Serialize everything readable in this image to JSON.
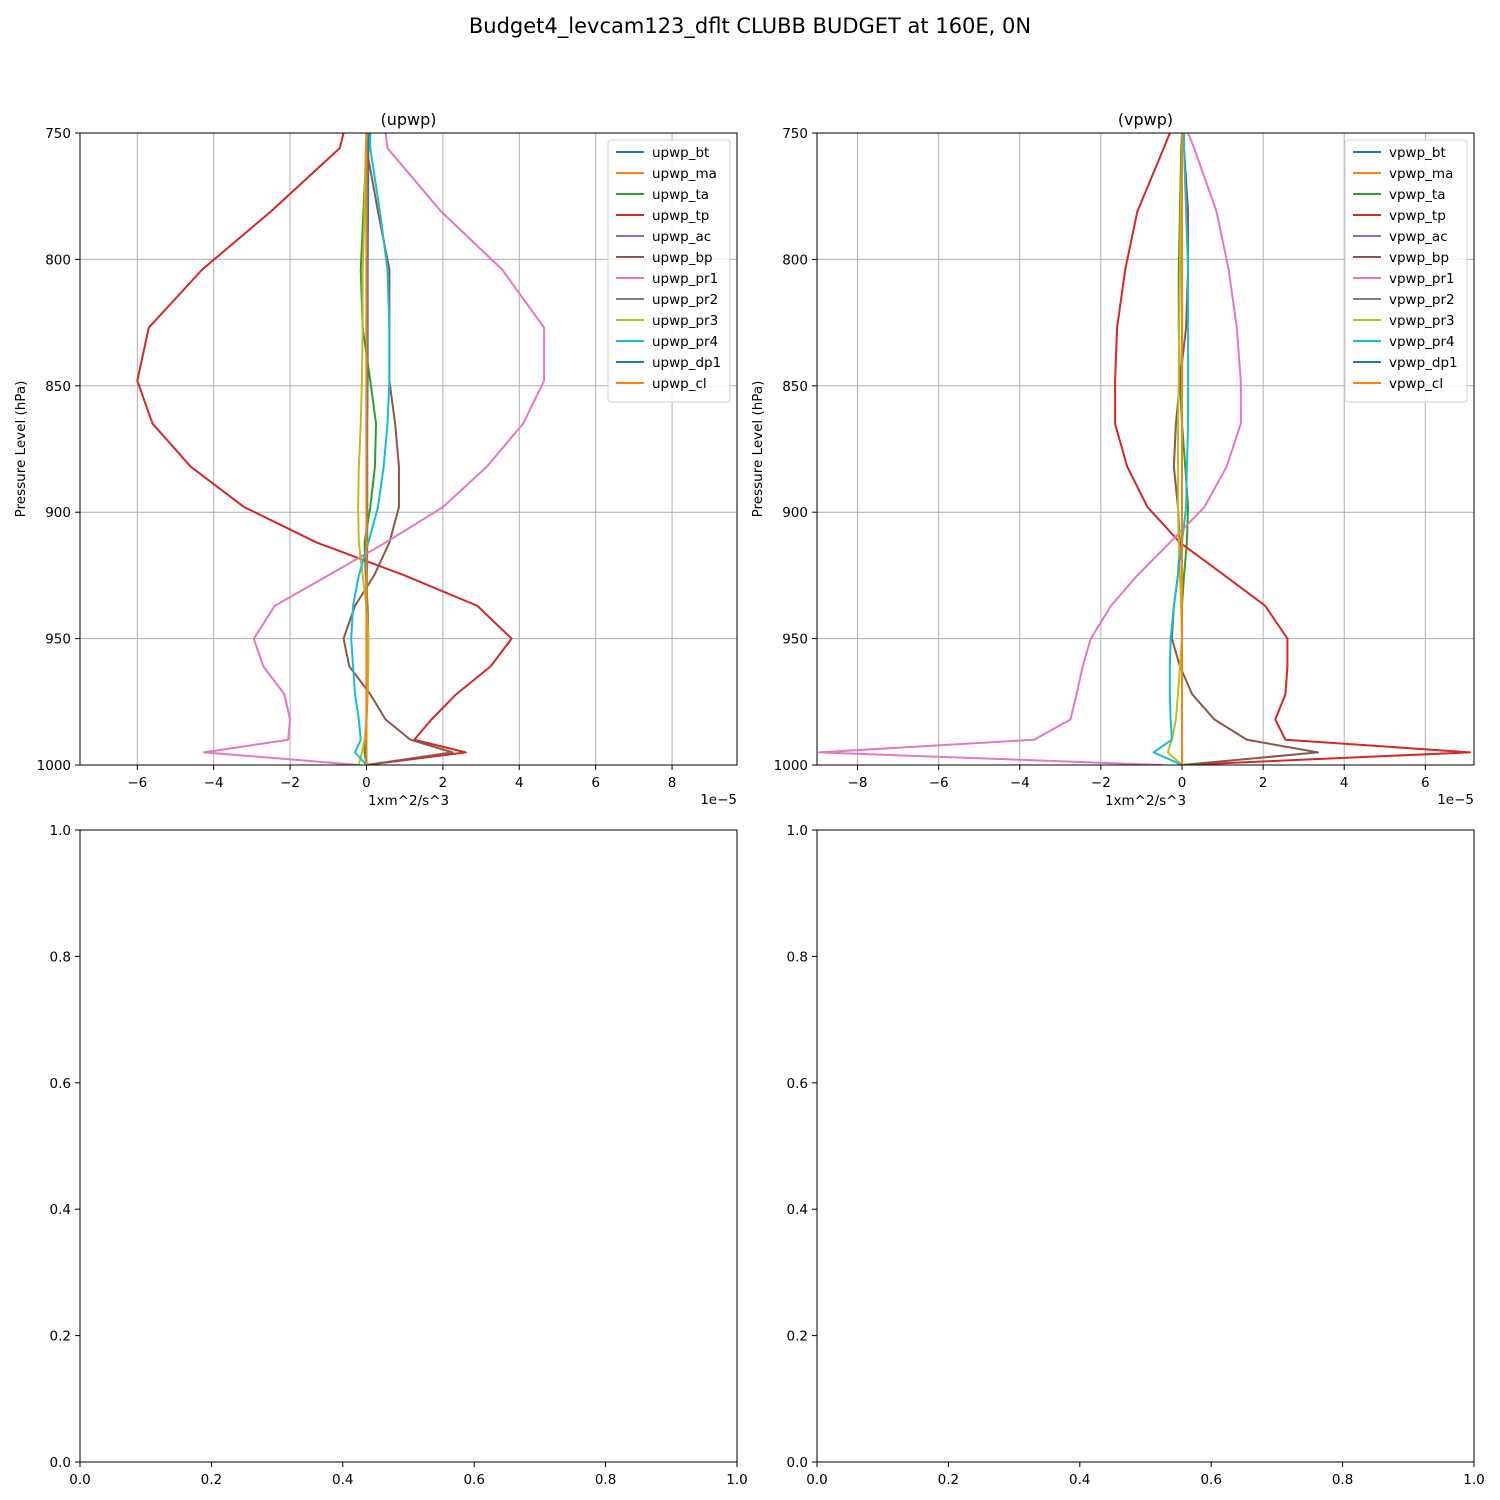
{
  "figure_title": "Budget4_levcam123_dflt CLUBB BUDGET at 160E, 0N",
  "colors": {
    "bt": "#1f77b4",
    "ma": "#ff7f0e",
    "ta": "#2ca02c",
    "tp": "#d62728",
    "ac": "#9467bd",
    "bp": "#8c564b",
    "pr1": "#e377c2",
    "pr2": "#7f7f7f",
    "pr3": "#bcbd22",
    "pr4": "#17becf",
    "dp1": "#1f77b4",
    "cl": "#ff7f0e",
    "grid": "#b0b0b0"
  },
  "chart_data": [
    {
      "type": "line",
      "title": "(upwp)",
      "xlabel": "1xm^2/s^3",
      "ylabel": "Pressure Level (hPa)",
      "x_offset_text": "1e−5",
      "xlim": [
        -7.5,
        9.7
      ],
      "ylim": [
        1000,
        750
      ],
      "xticks": [
        -6,
        -4,
        -2,
        0,
        2,
        4,
        6,
        8
      ],
      "xtick_labels": [
        "−6",
        "−4",
        "−2",
        "0",
        "2",
        "4",
        "6",
        "8"
      ],
      "yticks": [
        750,
        800,
        850,
        900,
        950,
        1000
      ],
      "ytick_labels": [
        "750",
        "800",
        "850",
        "900",
        "950",
        "1000"
      ],
      "grid": true,
      "legend_position": "top-right",
      "y": [
        750,
        756,
        781,
        804,
        827,
        848,
        865,
        882,
        898,
        912,
        925,
        937,
        950,
        961,
        972,
        982,
        990,
        995,
        1000
      ],
      "series": [
        {
          "name": "upwp_bt",
          "color_key": "bt",
          "values": [
            0.05,
            0.05,
            0.04,
            0.03,
            0.03,
            0.03,
            0.02,
            0.02,
            0.02,
            0.02,
            0.01,
            0.01,
            0.01,
            0.01,
            0.01,
            0.0,
            0.0,
            0.0,
            0.0
          ]
        },
        {
          "name": "upwp_ma",
          "color_key": "ma",
          "values": [
            0.0,
            0.0,
            0.0,
            0.0,
            0.0,
            0.0,
            0.0,
            0.0,
            0.0,
            0.0,
            0.0,
            0.0,
            0.0,
            0.0,
            0.0,
            0.0,
            0.0,
            0.0,
            0.0
          ]
        },
        {
          "name": "upwp_ta",
          "color_key": "ta",
          "values": [
            0.02,
            0.0,
            -0.08,
            -0.15,
            -0.1,
            0.1,
            0.25,
            0.22,
            0.1,
            -0.05,
            -0.02,
            0.03,
            0.05,
            0.04,
            0.03,
            0.0,
            -0.03,
            -0.05,
            0.0
          ]
        },
        {
          "name": "upwp_tp",
          "color_key": "tp",
          "values": [
            -0.6,
            -0.7,
            -2.5,
            -4.3,
            -5.7,
            -6.0,
            -5.6,
            -4.6,
            -3.2,
            -1.3,
            1.0,
            2.9,
            3.8,
            3.25,
            2.35,
            1.7,
            1.25,
            2.6,
            0.0
          ]
        },
        {
          "name": "upwp_ac",
          "color_key": "ac",
          "values": [
            0.0,
            0.0,
            0.0,
            0.0,
            0.0,
            0.0,
            0.0,
            0.0,
            0.0,
            0.0,
            0.0,
            0.0,
            0.0,
            0.0,
            0.0,
            0.0,
            0.0,
            0.0,
            0.0
          ]
        },
        {
          "name": "upwp_bp",
          "color_key": "bp",
          "values": [
            0.0,
            0.0,
            0.3,
            0.6,
            0.6,
            0.6,
            0.75,
            0.85,
            0.85,
            0.6,
            0.2,
            -0.3,
            -0.6,
            -0.45,
            0.1,
            0.5,
            1.15,
            2.25,
            0.0
          ]
        },
        {
          "name": "upwp_pr1",
          "color_key": "pr1",
          "values": [
            0.5,
            0.55,
            1.95,
            3.55,
            4.65,
            4.65,
            4.1,
            3.15,
            2.0,
            0.5,
            -1.0,
            -2.4,
            -2.95,
            -2.7,
            -2.15,
            -2.0,
            -2.05,
            -4.25,
            -0.2
          ]
        },
        {
          "name": "upwp_pr2",
          "color_key": "pr2",
          "values": [
            0.0,
            0.0,
            0.0,
            0.0,
            0.0,
            0.0,
            0.0,
            0.0,
            0.0,
            0.0,
            0.0,
            0.0,
            0.0,
            0.0,
            0.0,
            0.0,
            0.0,
            0.0,
            0.0
          ]
        },
        {
          "name": "upwp_pr3",
          "color_key": "pr3",
          "values": [
            0.0,
            -0.02,
            -0.05,
            -0.1,
            -0.1,
            -0.12,
            -0.15,
            -0.2,
            -0.22,
            -0.2,
            -0.1,
            0.0,
            0.05,
            0.05,
            0.03,
            0.0,
            -0.05,
            -0.12,
            -0.2
          ]
        },
        {
          "name": "upwp_pr4",
          "color_key": "pr4",
          "values": [
            0.1,
            0.1,
            0.35,
            0.55,
            0.6,
            0.6,
            0.55,
            0.45,
            0.3,
            0.05,
            -0.2,
            -0.35,
            -0.4,
            -0.35,
            -0.3,
            -0.2,
            -0.15,
            -0.3,
            0.0
          ]
        },
        {
          "name": "upwp_dp1",
          "color_key": "dp1",
          "values": [
            0.0,
            0.0,
            0.0,
            0.0,
            0.0,
            0.0,
            0.0,
            0.0,
            0.0,
            0.0,
            0.0,
            0.0,
            0.0,
            0.0,
            0.0,
            0.0,
            0.0,
            0.0,
            0.0
          ]
        },
        {
          "name": "upwp_cl",
          "color_key": "cl",
          "values": [
            0.0,
            0.0,
            0.0,
            0.0,
            0.0,
            0.0,
            0.0,
            0.0,
            0.0,
            0.0,
            0.0,
            0.0,
            0.0,
            0.0,
            0.0,
            0.0,
            0.0,
            0.0,
            0.0
          ]
        }
      ]
    },
    {
      "type": "line",
      "title": "(vpwp)",
      "xlabel": "1xm^2/s^3",
      "ylabel": "Pressure Level (hPa)",
      "x_offset_text": "1e−5",
      "xlim": [
        -9.0,
        7.2
      ],
      "ylim": [
        1000,
        750
      ],
      "xticks": [
        -8,
        -6,
        -4,
        -2,
        0,
        2,
        4,
        6
      ],
      "xtick_labels": [
        "−8",
        "−6",
        "−4",
        "−2",
        "0",
        "2",
        "4",
        "6"
      ],
      "yticks": [
        750,
        800,
        850,
        900,
        950,
        1000
      ],
      "ytick_labels": [
        "750",
        "800",
        "850",
        "900",
        "950",
        "1000"
      ],
      "grid": true,
      "legend_position": "top-right",
      "y": [
        750,
        756,
        781,
        804,
        827,
        848,
        865,
        882,
        898,
        912,
        925,
        937,
        950,
        961,
        972,
        982,
        990,
        995,
        1000
      ],
      "series": [
        {
          "name": "vpwp_bt",
          "color_key": "bt",
          "values": [
            0.0,
            0.0,
            0.0,
            0.0,
            0.0,
            0.0,
            0.0,
            0.0,
            0.0,
            0.0,
            0.0,
            0.0,
            0.0,
            0.0,
            0.0,
            0.0,
            0.0,
            0.0,
            0.0
          ]
        },
        {
          "name": "vpwp_ma",
          "color_key": "ma",
          "values": [
            0.0,
            0.0,
            0.0,
            0.0,
            0.0,
            0.0,
            0.0,
            0.0,
            0.0,
            0.0,
            0.0,
            0.0,
            0.0,
            0.0,
            0.0,
            0.0,
            0.0,
            0.0,
            0.0
          ]
        },
        {
          "name": "vpwp_ta",
          "color_key": "ta",
          "values": [
            0.0,
            -0.02,
            -0.05,
            -0.08,
            -0.08,
            -0.05,
            0.0,
            0.08,
            0.15,
            0.12,
            0.05,
            0.0,
            0.0,
            0.0,
            0.0,
            0.0,
            0.0,
            0.0,
            0.0
          ]
        },
        {
          "name": "vpwp_tp",
          "color_key": "tp",
          "values": [
            -0.3,
            -0.45,
            -1.1,
            -1.4,
            -1.6,
            -1.65,
            -1.65,
            -1.35,
            -0.85,
            -0.05,
            1.05,
            2.05,
            2.6,
            2.6,
            2.55,
            2.3,
            2.55,
            7.1,
            0.0
          ]
        },
        {
          "name": "vpwp_ac",
          "color_key": "ac",
          "values": [
            0.0,
            0.0,
            0.0,
            0.0,
            0.0,
            0.0,
            0.0,
            0.0,
            0.0,
            0.0,
            0.0,
            0.0,
            0.0,
            0.0,
            0.0,
            0.0,
            0.0,
            0.0,
            0.0
          ]
        },
        {
          "name": "vpwp_bp",
          "color_key": "bp",
          "values": [
            0.05,
            0.05,
            0.15,
            0.15,
            0.1,
            -0.05,
            -0.15,
            -0.2,
            -0.1,
            -0.05,
            -0.1,
            -0.2,
            -0.25,
            -0.05,
            0.25,
            0.8,
            1.6,
            3.35,
            0.0
          ]
        },
        {
          "name": "vpwp_pr1",
          "color_key": "pr1",
          "values": [
            0.15,
            0.3,
            0.85,
            1.15,
            1.35,
            1.45,
            1.45,
            1.1,
            0.55,
            -0.3,
            -1.1,
            -1.75,
            -2.25,
            -2.45,
            -2.6,
            -2.75,
            -3.65,
            -8.95,
            -0.5
          ]
        },
        {
          "name": "vpwp_pr2",
          "color_key": "pr2",
          "values": [
            0.0,
            0.0,
            0.0,
            0.0,
            0.0,
            0.0,
            0.0,
            0.0,
            0.0,
            0.0,
            0.0,
            0.0,
            0.0,
            0.0,
            0.0,
            0.0,
            0.0,
            0.0,
            0.0
          ]
        },
        {
          "name": "vpwp_pr3",
          "color_key": "pr3",
          "values": [
            0.0,
            0.0,
            -0.03,
            -0.05,
            -0.07,
            -0.08,
            -0.1,
            -0.1,
            -0.1,
            -0.08,
            -0.05,
            -0.02,
            0.0,
            -0.05,
            -0.1,
            -0.15,
            -0.25,
            -0.35,
            0.0
          ]
        },
        {
          "name": "vpwp_pr4",
          "color_key": "pr4",
          "values": [
            0.05,
            0.05,
            0.1,
            0.15,
            0.15,
            0.15,
            0.15,
            0.12,
            0.1,
            0.0,
            -0.1,
            -0.2,
            -0.28,
            -0.3,
            -0.3,
            -0.28,
            -0.25,
            -0.7,
            0.0
          ]
        },
        {
          "name": "vpwp_dp1",
          "color_key": "dp1",
          "values": [
            0.0,
            0.0,
            0.0,
            0.0,
            0.0,
            0.0,
            0.0,
            0.0,
            0.0,
            0.0,
            0.0,
            0.0,
            0.0,
            0.0,
            0.0,
            0.0,
            0.0,
            0.0,
            0.0
          ]
        },
        {
          "name": "vpwp_cl",
          "color_key": "cl",
          "values": [
            0.0,
            0.0,
            0.0,
            0.0,
            0.0,
            0.0,
            0.0,
            0.0,
            0.0,
            0.0,
            0.0,
            0.0,
            0.0,
            0.0,
            0.0,
            0.0,
            0.0,
            0.0,
            0.0
          ]
        }
      ]
    },
    {
      "type": "line",
      "title": "",
      "xlim": [
        0.0,
        1.0
      ],
      "ylim": [
        0.0,
        1.0
      ],
      "xticks": [
        0.0,
        0.2,
        0.4,
        0.6,
        0.8,
        1.0
      ],
      "xtick_labels": [
        "0.0",
        "0.2",
        "0.4",
        "0.6",
        "0.8",
        "1.0"
      ],
      "yticks": [
        0.0,
        0.2,
        0.4,
        0.6,
        0.8,
        1.0
      ],
      "ytick_labels": [
        "0.0",
        "0.2",
        "0.4",
        "0.6",
        "0.8",
        "1.0"
      ],
      "grid": false,
      "series": []
    },
    {
      "type": "line",
      "title": "",
      "xlim": [
        0.0,
        1.0
      ],
      "ylim": [
        0.0,
        1.0
      ],
      "xticks": [
        0.0,
        0.2,
        0.4,
        0.6,
        0.8,
        1.0
      ],
      "xtick_labels": [
        "0.0",
        "0.2",
        "0.4",
        "0.6",
        "0.8",
        "1.0"
      ],
      "yticks": [
        0.0,
        0.2,
        0.4,
        0.6,
        0.8,
        1.0
      ],
      "ytick_labels": [
        "0.0",
        "0.2",
        "0.4",
        "0.6",
        "0.8",
        "1.0"
      ],
      "grid": false,
      "series": []
    }
  ]
}
